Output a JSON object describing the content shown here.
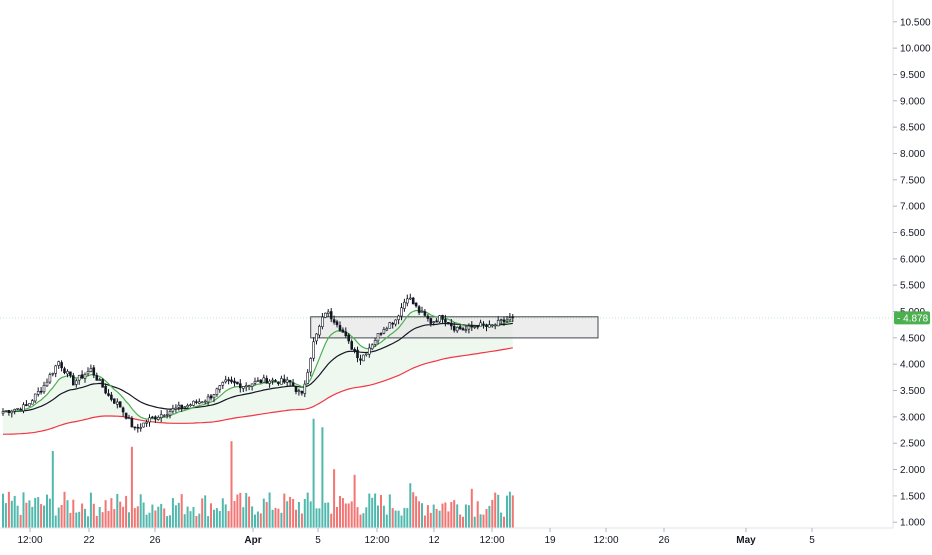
{
  "chart_data": {
    "type": "candlestick",
    "price_axis": {
      "range": [
        0.85,
        10.75
      ],
      "ticks": [
        "10.500",
        "10.000",
        "9.500",
        "9.000",
        "8.500",
        "8.000",
        "7.500",
        "7.000",
        "6.500",
        "6.000",
        "5.500",
        "5.000",
        "4.500",
        "4.000",
        "3.500",
        "3.000",
        "2.500",
        "2.000",
        "1.500",
        "1.000"
      ]
    },
    "time_axis": {
      "ticks": [
        {
          "label": "12:00",
          "bold": false
        },
        {
          "label": "22",
          "bold": false
        },
        {
          "label": "26",
          "bold": false
        },
        {
          "label": "Apr",
          "bold": true
        },
        {
          "label": "5",
          "bold": false
        },
        {
          "label": "12:00",
          "bold": false
        },
        {
          "label": "12",
          "bold": false
        },
        {
          "label": "12:00",
          "bold": false
        },
        {
          "label": "19",
          "bold": false
        },
        {
          "label": "12:00",
          "bold": false
        },
        {
          "label": "26",
          "bold": false
        },
        {
          "label": "May",
          "bold": true
        },
        {
          "label": "5",
          "bold": false
        }
      ]
    },
    "last_price": {
      "label": "4.878",
      "value": 4.878,
      "color": "#4caf50"
    },
    "range_box": {
      "high": 4.9,
      "low": 4.5,
      "fill": "#e6e6e6",
      "stroke": "#434651"
    },
    "colors": {
      "up": "#26a69a",
      "down": "#ef5350",
      "candle": "#131722",
      "volume_up": "#26a69a",
      "volume_down": "#ef5350",
      "ma_fast": "#4caf50",
      "ma_mid": "#131722",
      "ma_slow": "#f23645",
      "ma_fill": "#e8f5e9"
    },
    "ohlc_anchor_closes": [
      {
        "bar": 0,
        "close": 3.1
      },
      {
        "bar": 8,
        "close": 3.2
      },
      {
        "bar": 14,
        "close": 3.6
      },
      {
        "bar": 19,
        "close": 4.05
      },
      {
        "bar": 24,
        "close": 3.65
      },
      {
        "bar": 30,
        "close": 3.9
      },
      {
        "bar": 36,
        "close": 3.4
      },
      {
        "bar": 40,
        "close": 3.2
      },
      {
        "bar": 45,
        "close": 2.75
      },
      {
        "bar": 50,
        "close": 2.95
      },
      {
        "bar": 56,
        "close": 3.1
      },
      {
        "bar": 62,
        "close": 3.2
      },
      {
        "bar": 70,
        "close": 3.35
      },
      {
        "bar": 76,
        "close": 3.65
      },
      {
        "bar": 82,
        "close": 3.6
      },
      {
        "bar": 90,
        "close": 3.7
      },
      {
        "bar": 98,
        "close": 3.65
      },
      {
        "bar": 102,
        "close": 3.4
      },
      {
        "bar": 106,
        "close": 4.4
      },
      {
        "bar": 110,
        "close": 5.0
      },
      {
        "bar": 114,
        "close": 4.8
      },
      {
        "bar": 118,
        "close": 4.4
      },
      {
        "bar": 122,
        "close": 4.1
      },
      {
        "bar": 126,
        "close": 4.4
      },
      {
        "bar": 130,
        "close": 4.7
      },
      {
        "bar": 134,
        "close": 4.85
      },
      {
        "bar": 138,
        "close": 5.3
      },
      {
        "bar": 142,
        "close": 5.0
      },
      {
        "bar": 146,
        "close": 4.8
      },
      {
        "bar": 150,
        "close": 4.9
      },
      {
        "bar": 154,
        "close": 4.7
      },
      {
        "bar": 158,
        "close": 4.65
      },
      {
        "bar": 162,
        "close": 4.75
      },
      {
        "bar": 166,
        "close": 4.7
      },
      {
        "bar": 170,
        "close": 4.8
      },
      {
        "bar": 174,
        "close": 4.878
      }
    ],
    "volume_spikes": [
      {
        "bar": 17,
        "ratio": 0.55
      },
      {
        "bar": 44,
        "ratio": 0.58
      },
      {
        "bar": 78,
        "ratio": 0.62
      },
      {
        "bar": 106,
        "ratio": 0.78
      },
      {
        "bar": 109,
        "ratio": 0.72
      },
      {
        "bar": 113,
        "ratio": 0.42
      },
      {
        "bar": 120,
        "ratio": 0.38
      },
      {
        "bar": 139,
        "ratio": 0.32
      },
      {
        "bar": 160,
        "ratio": 0.28
      }
    ],
    "bar_count": 175
  }
}
